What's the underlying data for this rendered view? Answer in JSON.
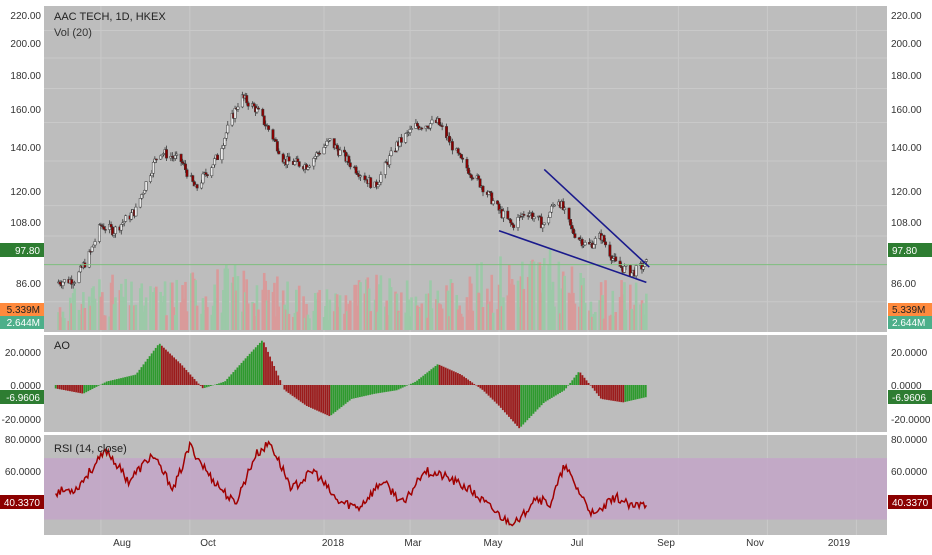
{
  "header": {
    "title": "AAC TECH, 1D, HKEX",
    "volume_label": "Vol (20)"
  },
  "colors": {
    "panel_bg": "#bdbdbd",
    "grid": "#c9c9c9",
    "up": "#2e8b57",
    "down": "#b22222",
    "candle_up_fill": "#e8e8e8",
    "candle_down_fill": "#8b0000",
    "wick": "#3a3a3a",
    "trendline": "#1a1a8c",
    "price_line": "#7fbf7f",
    "ao_up": "#2e9a2e",
    "ao_down": "#9b1b1b",
    "rsi_line": "#a00000",
    "rsi_band": "#c3a6c8",
    "tag_green": "#2e7d32",
    "tag_orange": "#ff8a3d",
    "tag_teal": "#4caf8a",
    "tag_darkred": "#8b0000",
    "axis_text": "#333333"
  },
  "price_axis": {
    "ticks": [
      "220.00",
      "200.00",
      "180.00",
      "160.00",
      "140.00",
      "120.00",
      "108.00",
      "86.00"
    ],
    "current_price": "97.80",
    "volume_last": "5.339M",
    "volume_ma": "2.644M"
  },
  "ao_axis": {
    "label": "AO",
    "ticks": [
      "20.0000",
      "0.0000",
      "-20.0000"
    ],
    "current": "-6.9606"
  },
  "rsi_axis": {
    "label": "RSI (14, close)",
    "ticks": [
      "80.0000",
      "60.0000"
    ],
    "current": "40.3370"
  },
  "time_axis": {
    "labels": [
      "Aug",
      "Oct",
      "2018",
      "Mar",
      "May",
      "Jul",
      "Sep",
      "Nov",
      "2019"
    ]
  },
  "chart_data": [
    {
      "type": "line",
      "title": "AAC TECH, 1D, HKEX",
      "xlabel": "",
      "ylabel": "",
      "scale": "log",
      "ylim": [
        78,
        225
      ],
      "x": [
        "2017-07-01",
        "2017-07-15",
        "2017-07-25",
        "2017-08-01",
        "2017-08-10",
        "2017-08-25",
        "2017-09-10",
        "2017-09-25",
        "2017-10-05",
        "2017-10-20",
        "2017-11-05",
        "2017-11-15",
        "2017-11-25",
        "2017-12-05",
        "2017-12-20",
        "2018-01-05",
        "2018-01-20",
        "2018-02-05",
        "2018-02-20",
        "2018-03-05",
        "2018-03-20",
        "2018-04-05",
        "2018-04-20",
        "2018-05-01",
        "2018-05-10",
        "2018-05-20",
        "2018-06-01",
        "2018-06-10",
        "2018-06-20",
        "2018-07-01",
        "2018-07-10",
        "2018-07-20",
        "2018-07-31",
        "2018-08-10"
      ],
      "series": [
        {
          "values": [
            92,
            93,
            102,
            112,
            110,
            118,
            145,
            140,
            127,
            142,
            175,
            168,
            155,
            140,
            138,
            150,
            138,
            128,
            148,
            158,
            160,
            140,
            128,
            118,
            112,
            118,
            112,
            124,
            110,
            104,
            108,
            98,
            95,
            98
          ]
        }
      ],
      "trendlines": [
        {
          "from": [
            "2018-05-01",
            110
          ],
          "to": [
            "2018-08-10",
            92
          ]
        },
        {
          "from": [
            "2018-06-01",
            136
          ],
          "to": [
            "2018-08-12",
            97
          ]
        }
      ],
      "last_price": 97.8
    },
    {
      "type": "bar",
      "title": "Vol (20)",
      "x": [
        "2017-07-01",
        "2017-08-01",
        "2017-09-01",
        "2017-10-01",
        "2017-11-01",
        "2017-12-01",
        "2018-01-01",
        "2018-02-01",
        "2018-03-01",
        "2018-04-01",
        "2018-05-01",
        "2018-06-01",
        "2018-07-01",
        "2018-08-01"
      ],
      "values": [
        3.2,
        6.5,
        5.0,
        6.8,
        7.5,
        6.0,
        4.8,
        6.2,
        5.4,
        6.0,
        8.6,
        9.5,
        5.8,
        5.339
      ],
      "ma_last": 2.644,
      "unit": "M"
    },
    {
      "type": "bar",
      "title": "AO",
      "ylim": [
        -25,
        25
      ],
      "x": [
        "2017-07-01",
        "2017-07-20",
        "2017-08-05",
        "2017-08-25",
        "2017-09-10",
        "2017-09-25",
        "2017-10-10",
        "2017-10-25",
        "2017-11-10",
        "2017-11-20",
        "2017-12-05",
        "2017-12-20",
        "2018-01-05",
        "2018-01-20",
        "2018-02-05",
        "2018-02-20",
        "2018-03-05",
        "2018-03-20",
        "2018-04-05",
        "2018-04-20",
        "2018-05-01",
        "2018-05-15",
        "2018-06-01",
        "2018-06-15",
        "2018-06-25",
        "2018-07-10",
        "2018-07-25",
        "2018-08-10"
      ],
      "values": [
        -2,
        -5,
        2,
        6,
        24,
        12,
        -2,
        2,
        17,
        26,
        -3,
        -12,
        -18,
        -8,
        -5,
        -3,
        2,
        12,
        6,
        -3,
        -12,
        -25,
        -10,
        -3,
        8,
        -8,
        -10,
        -6.9606
      ]
    },
    {
      "type": "line",
      "title": "RSI (14, close)",
      "ylim": [
        20,
        85
      ],
      "x": [
        "2017-07-01",
        "2017-07-15",
        "2017-07-25",
        "2017-08-05",
        "2017-08-20",
        "2017-09-05",
        "2017-09-20",
        "2017-10-01",
        "2017-10-15",
        "2017-11-01",
        "2017-11-15",
        "2017-11-25",
        "2017-12-10",
        "2017-12-25",
        "2018-01-10",
        "2018-01-25",
        "2018-02-10",
        "2018-02-25",
        "2018-03-10",
        "2018-03-25",
        "2018-04-10",
        "2018-04-25",
        "2018-05-05",
        "2018-05-15",
        "2018-05-25",
        "2018-06-05",
        "2018-06-15",
        "2018-06-25",
        "2018-07-05",
        "2018-07-20",
        "2018-07-31",
        "2018-08-10"
      ],
      "values": [
        48,
        50,
        62,
        75,
        55,
        72,
        50,
        78,
        58,
        40,
        72,
        80,
        50,
        62,
        42,
        38,
        55,
        40,
        62,
        58,
        50,
        38,
        30,
        28,
        45,
        40,
        65,
        48,
        32,
        45,
        38,
        40.337
      ],
      "band": [
        30,
        70
      ]
    }
  ]
}
